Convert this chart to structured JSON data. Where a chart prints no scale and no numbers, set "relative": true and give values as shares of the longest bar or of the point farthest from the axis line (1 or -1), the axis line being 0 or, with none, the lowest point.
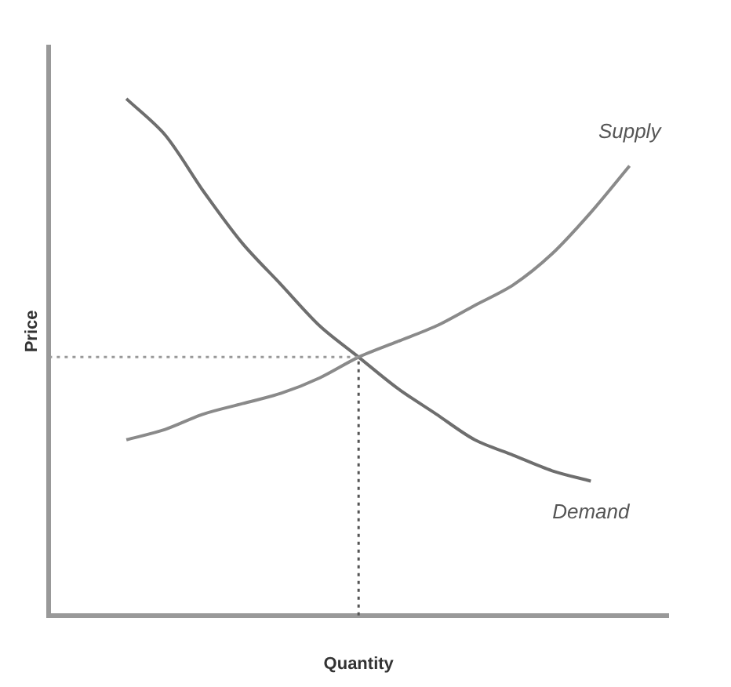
{
  "chart_data": {
    "type": "line",
    "relative": true,
    "xlabel": "Quantity",
    "ylabel": "Price",
    "categories": [
      null,
      null,
      null,
      null,
      null,
      null,
      null,
      null,
      null,
      null,
      null,
      null,
      null,
      null,
      null,
      null,
      null
    ],
    "series": [
      {
        "name": "Supply",
        "color": "#8a8a8a",
        "values": [
          null,
          null,
          0.34,
          0.36,
          0.39,
          0.41,
          0.43,
          0.46,
          0.5,
          0.53,
          0.56,
          0.6,
          0.64,
          0.7,
          0.78,
          0.87,
          null
        ]
      },
      {
        "name": "Demand",
        "color": "#6e6e6e",
        "values": [
          null,
          null,
          1,
          0.93,
          0.82,
          0.72,
          0.64,
          0.56,
          0.5,
          0.44,
          0.39,
          0.34,
          0.31,
          0.28,
          0.26,
          null,
          null
        ]
      }
    ],
    "ref_lines": [
      {
        "axis": "y",
        "value": 0.5,
        "line_style": "dotted",
        "color": "#999999"
      }
    ],
    "legend": false,
    "grid": false,
    "marker": "none",
    "line_style": "solid"
  }
}
